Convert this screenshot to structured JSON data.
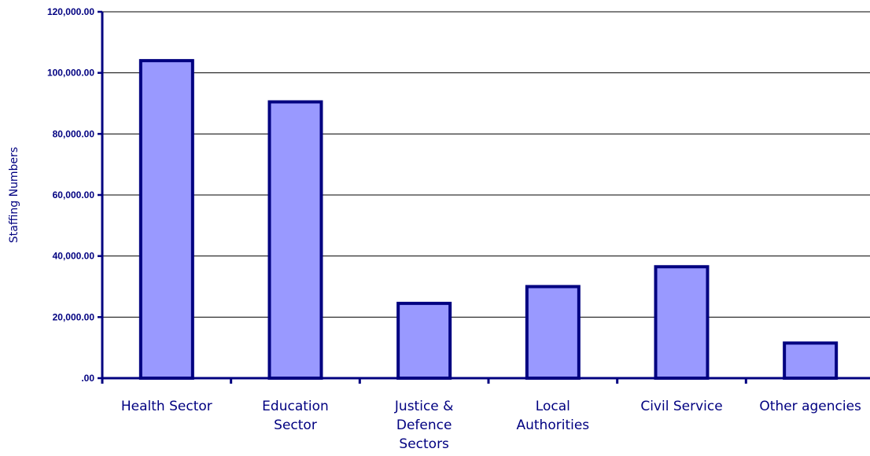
{
  "chart_data": {
    "type": "bar",
    "ylabel": "Staffing Numbers",
    "categories": [
      [
        "Health Sector"
      ],
      [
        "Education",
        "Sector"
      ],
      [
        "Justice &",
        "Defence",
        "Sectors"
      ],
      [
        "Local",
        "Authorities"
      ],
      [
        "Civil Service"
      ],
      [
        "Other agencies"
      ]
    ],
    "values": [
      104000,
      90500,
      24500,
      30000,
      36500,
      11500
    ],
    "ylim": [
      0,
      120000
    ],
    "yticks": [
      {
        "value": 0,
        "label": ".00"
      },
      {
        "value": 20000,
        "label": "20,000.00"
      },
      {
        "value": 40000,
        "label": "40,000.00"
      },
      {
        "value": 60000,
        "label": "60,000.00"
      },
      {
        "value": 80000,
        "label": "80,000.00"
      },
      {
        "value": 100000,
        "label": "100,000.00"
      },
      {
        "value": 120000,
        "label": "120,000.00"
      }
    ],
    "grid": true,
    "legend": "none",
    "colors": {
      "bar_fill": "#9999ff",
      "bar_stroke": "#000080",
      "axis": "#000080",
      "grid": "#000000"
    }
  }
}
